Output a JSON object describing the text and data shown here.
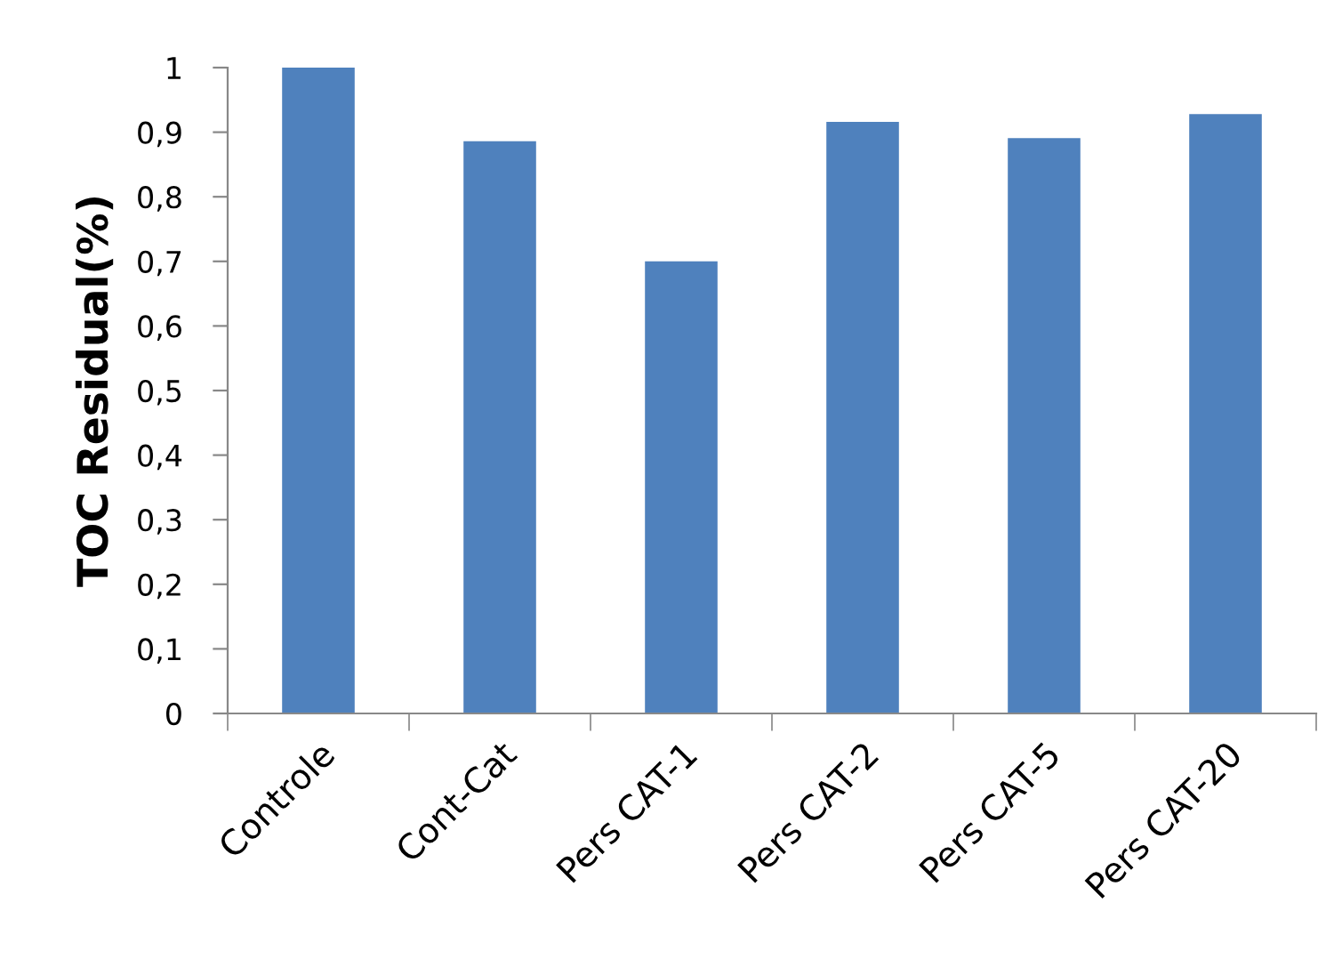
{
  "chart_data": {
    "type": "bar",
    "ylabel": "TOC Residual(%)",
    "categories": [
      "Controle",
      "Cont-Cat",
      "Pers CAT-1",
      "Pers CAT-2",
      "Pers CAT-5",
      "Pers CAT-20"
    ],
    "values": [
      1.0,
      0.886,
      0.7,
      0.916,
      0.891,
      0.928
    ],
    "color": "#4f81bd",
    "ylim": [
      0,
      1
    ],
    "yticks": [
      0,
      {
        "value": 0.1,
        "label": "0,1"
      },
      {
        "value": 0.2,
        "label": "0,2"
      },
      {
        "value": 0.3,
        "label": "0,3"
      },
      {
        "value": 0.4,
        "label": "0,4"
      },
      {
        "value": 0.5,
        "label": "0,5"
      },
      {
        "value": 0.6,
        "label": "0,6"
      },
      {
        "value": 0.7,
        "label": "0,7"
      },
      {
        "value": 0.8,
        "label": "0,8"
      },
      {
        "value": 0.9,
        "label": "0,9"
      },
      1
    ],
    "grid": false,
    "legend": false
  }
}
